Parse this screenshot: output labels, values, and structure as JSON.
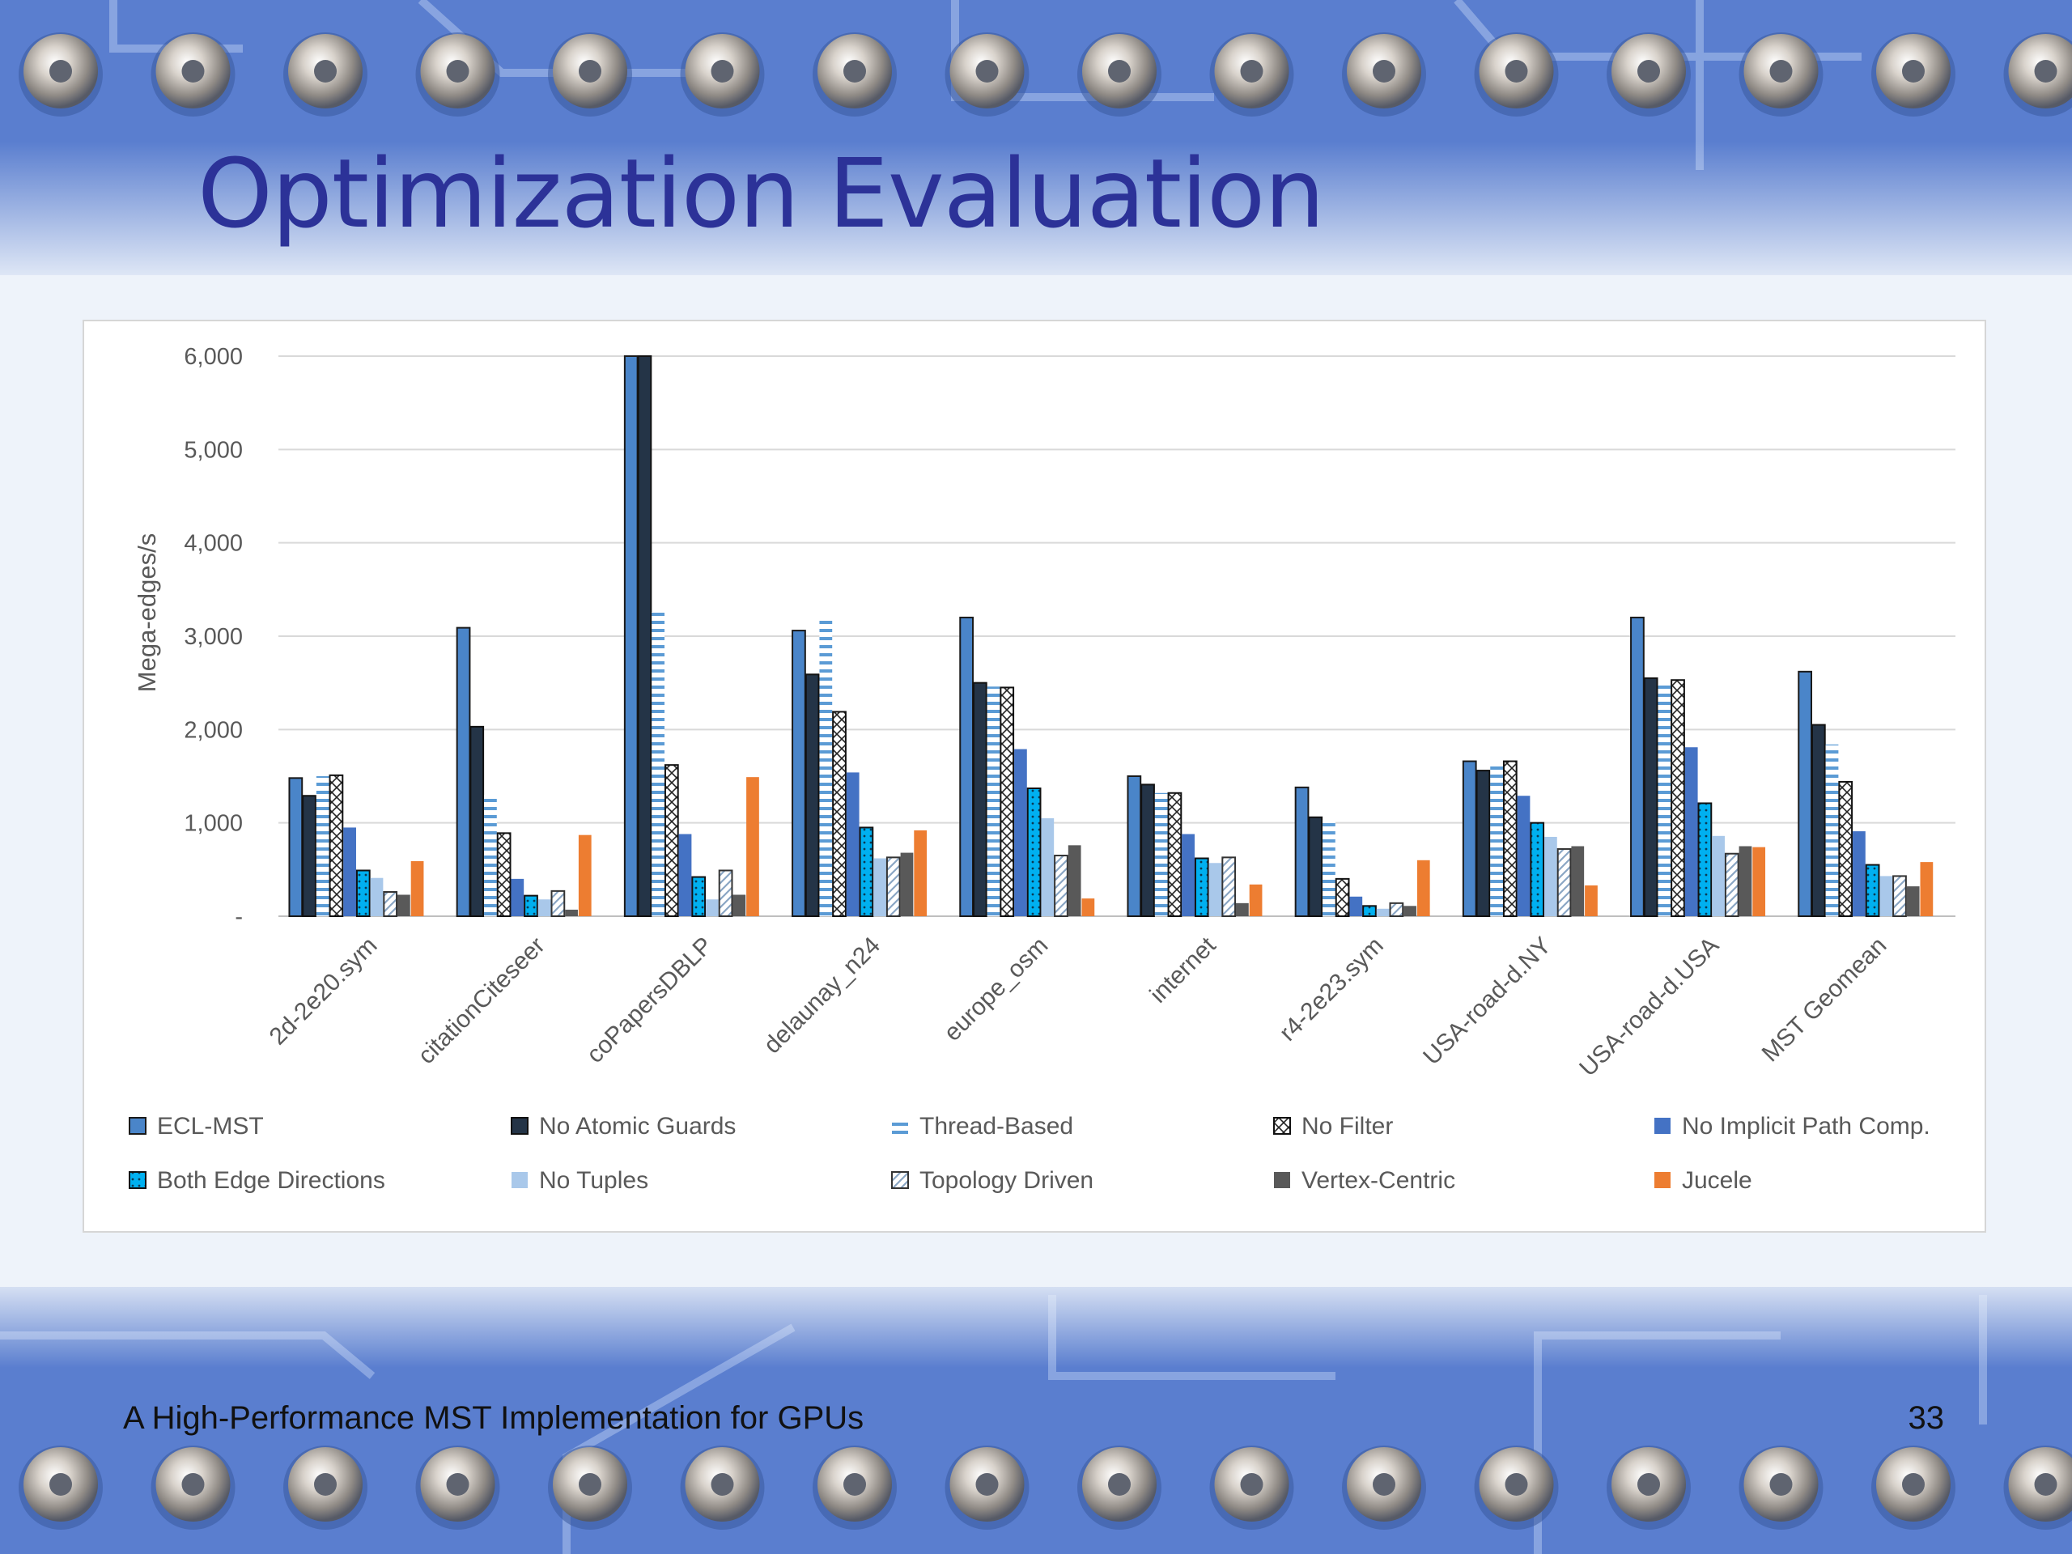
{
  "slide": {
    "title": "Optimization Evaluation",
    "footer": "A High-Performance MST Implementation for GPUs",
    "page_number": "33"
  },
  "colors": {
    "title": "#2c3298",
    "background": "#4f74c9",
    "ecl_mst": "#4a85c9",
    "no_atomic_guards": "#243447",
    "thread_based": "#5b9bd5",
    "no_filter": "#ffffff",
    "no_implicit_path_comp": "#4472c4",
    "both_edge_directions": "#00b0f0",
    "no_tuples": "#a9c8ea",
    "topology_driven": "#dbe8f6",
    "vertex_centric": "#595959",
    "jucele": "#ed7d31"
  },
  "chart_data": {
    "type": "bar",
    "ylabel": "Mega-edges/s",
    "ylim": [
      0,
      6000
    ],
    "yticks": [
      "-",
      "1,000",
      "2,000",
      "3,000",
      "4,000",
      "5,000",
      "6,000"
    ],
    "gridlines": true,
    "legend_position": "bottom",
    "categories": [
      "2d-2e20.sym",
      "citationCiteseer",
      "coPapersDBLP",
      "delaunay_n24",
      "europe_osm",
      "internet",
      "r4-2e23.sym",
      "USA-road-d.NY",
      "USA-road-d.USA",
      "MST Geomean"
    ],
    "series": [
      {
        "name": "ECL-MST",
        "values": [
          1480,
          3090,
          6000,
          3060,
          3200,
          1500,
          1380,
          1660,
          3200,
          2620
        ]
      },
      {
        "name": "No Atomic Guards",
        "values": [
          1290,
          2030,
          6000,
          2590,
          2500,
          1410,
          1060,
          1560,
          2550,
          2050
        ]
      },
      {
        "name": "Thread-Based",
        "values": [
          1500,
          1300,
          3260,
          3180,
          2460,
          1320,
          1030,
          1640,
          2480,
          1840
        ]
      },
      {
        "name": "No Filter",
        "values": [
          1510,
          890,
          1620,
          2190,
          2450,
          1320,
          400,
          1660,
          2530,
          1440
        ]
      },
      {
        "name": "No Implicit Path Comp.",
        "values": [
          950,
          400,
          880,
          1540,
          1790,
          880,
          210,
          1290,
          1810,
          910
        ]
      },
      {
        "name": "Both Edge Directions",
        "values": [
          490,
          220,
          420,
          950,
          1370,
          620,
          110,
          1000,
          1210,
          550
        ]
      },
      {
        "name": "No Tuples",
        "values": [
          410,
          180,
          180,
          620,
          1050,
          570,
          80,
          850,
          860,
          430
        ]
      },
      {
        "name": "Topology Driven",
        "values": [
          260,
          270,
          490,
          630,
          650,
          630,
          140,
          720,
          670,
          430
        ]
      },
      {
        "name": "Vertex-Centric",
        "values": [
          230,
          70,
          230,
          680,
          760,
          140,
          110,
          750,
          750,
          320
        ]
      },
      {
        "name": "Jucele",
        "values": [
          590,
          870,
          1490,
          920,
          190,
          340,
          600,
          330,
          740,
          580
        ]
      }
    ]
  }
}
